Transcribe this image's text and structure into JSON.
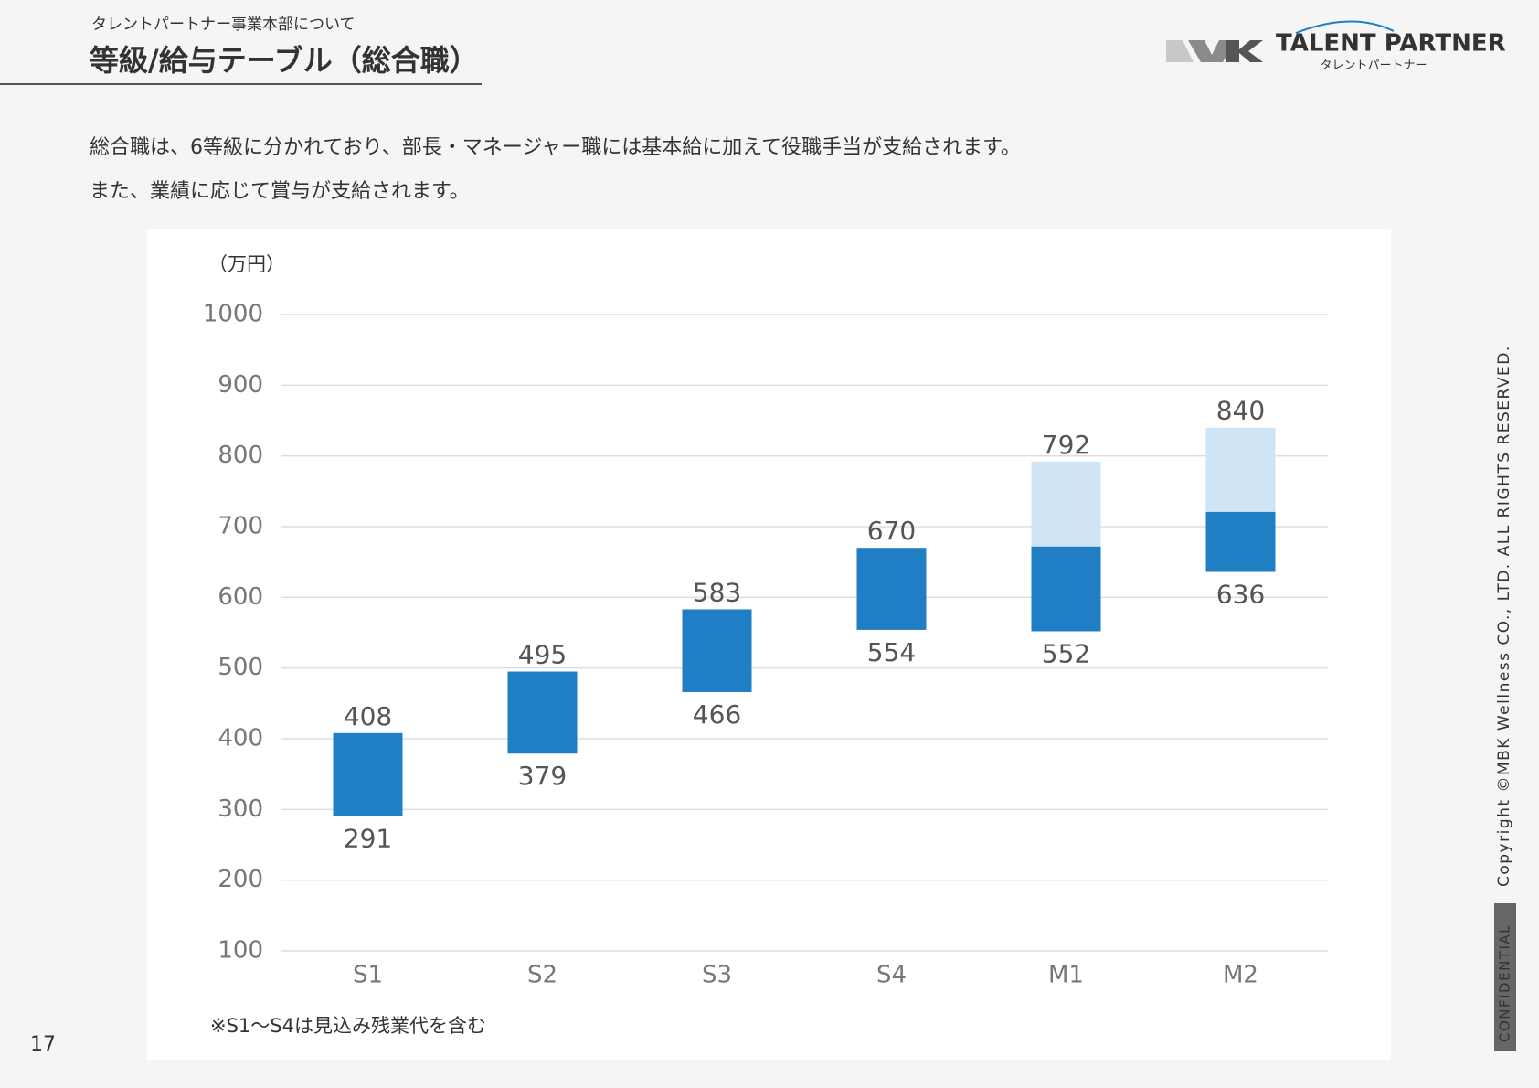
{
  "header": {
    "section": "タレントパートナー事業本部について",
    "title": "等級/給与テーブル（総合職）",
    "logo": "TALENT PARTNER",
    "logo_sub": "タレントパートナー"
  },
  "description": [
    "総合職は、6等級に分かれており、部長・マネージャー職には基本給に加えて役職手当が支給されます。",
    "また、業績に応じて賞与が支給されます。"
  ],
  "chart_data": {
    "type": "floating_bar",
    "unit": "（万円）",
    "categories": [
      "S1",
      "S2",
      "S3",
      "S4",
      "M1",
      "M2"
    ],
    "low": [
      291,
      379,
      466,
      554,
      552,
      636
    ],
    "high": [
      408,
      495,
      583,
      670,
      792,
      840
    ],
    "split": [
      null,
      null,
      null,
      null,
      672,
      721
    ],
    "color": "#1f7ec4",
    "allowance_color": "#cfe5f5",
    "ylim": [
      100,
      1000
    ],
    "yticks": [
      100,
      200,
      300,
      400,
      500,
      600,
      700,
      800,
      900,
      1000
    ],
    "grid": true,
    "note": "※S1～S4は見込み残業代を含む"
  },
  "footer": {
    "page": "17",
    "copyright": "Copyright ©MBK Wellness CO., LTD. ALL RIGHTS RESERVED.",
    "confidential": "CONFIDENTIAL"
  }
}
